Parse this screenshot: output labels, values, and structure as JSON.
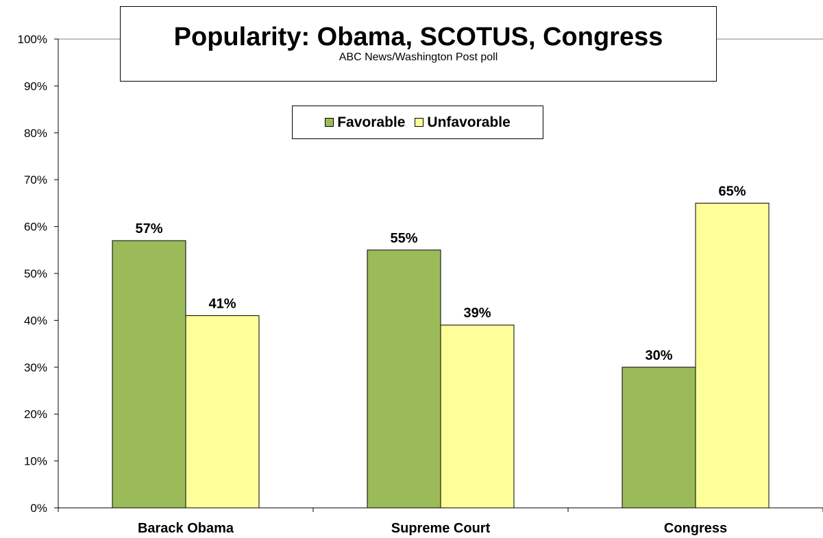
{
  "chart_data": {
    "type": "bar",
    "title": "Popularity: Obama, SCOTUS, Congress",
    "subtitle": "ABC News/Washington Post poll",
    "categories": [
      "Barack Obama",
      "Supreme Court",
      "Congress"
    ],
    "series": [
      {
        "name": "Favorable",
        "values": [
          57,
          55,
          30
        ],
        "color": "#9BBB59"
      },
      {
        "name": "Unfavorable",
        "values": [
          41,
          39,
          65
        ],
        "color": "#FFFF99"
      }
    ],
    "data_labels": [
      [
        "57%",
        "55%",
        "30%"
      ],
      [
        "41%",
        "39%",
        "65%"
      ]
    ],
    "ylim": [
      0,
      100
    ],
    "yticks": [
      "0%",
      "10%",
      "20%",
      "30%",
      "40%",
      "50%",
      "60%",
      "70%",
      "80%",
      "90%",
      "100%"
    ],
    "xlabel": "",
    "ylabel": "",
    "grid": false,
    "legend": "top-center"
  }
}
